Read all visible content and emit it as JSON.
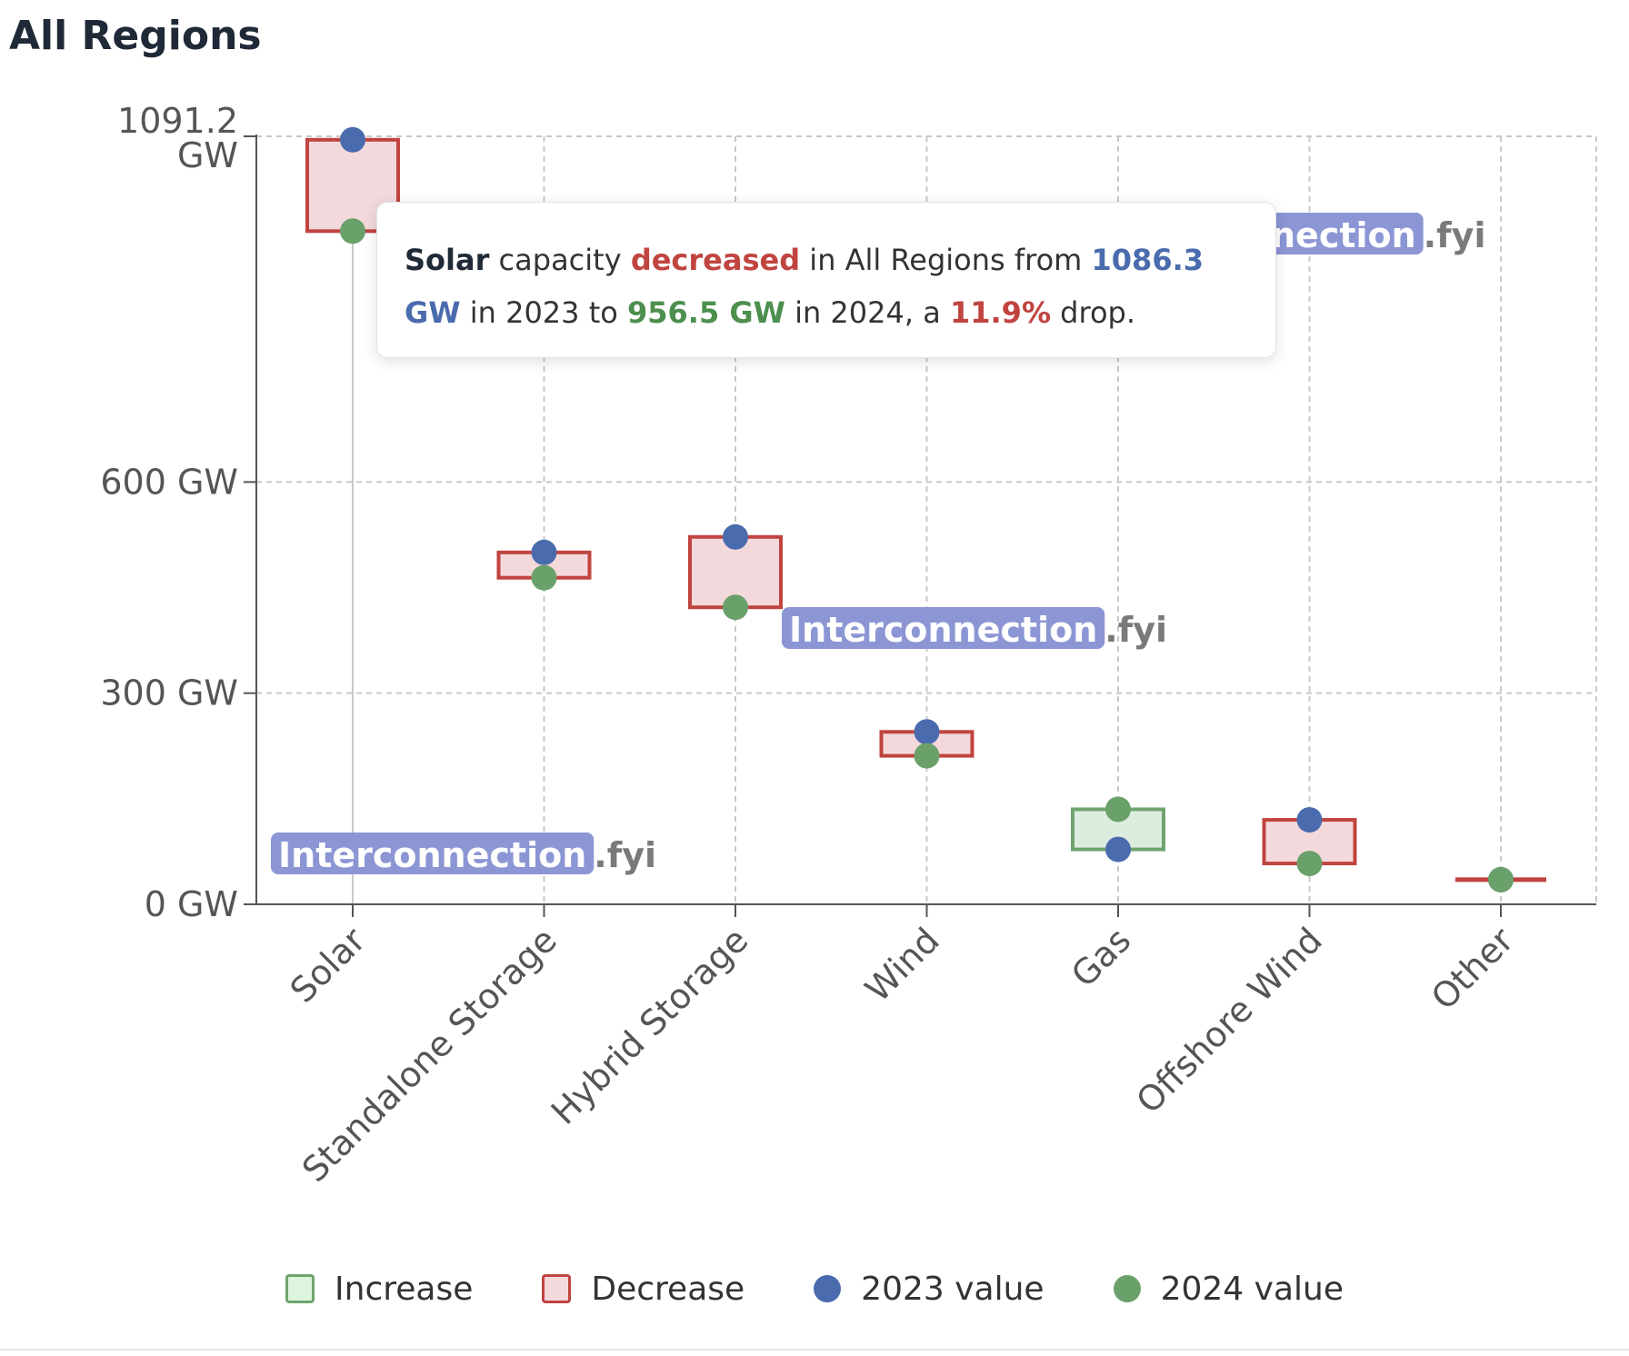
{
  "page": {
    "title": "All Regions"
  },
  "colors": {
    "increase_fill": "#dcecdf",
    "increase_stroke": "#6fa36f",
    "decrease_fill": "#f3d9db",
    "decrease_stroke": "#c0443f",
    "value_2023": "#4a6bad",
    "value_2024": "#6aa06a",
    "watermark_bg": "#8c96d4"
  },
  "chart_data": {
    "type": "bar",
    "categories": [
      "Solar",
      "Standalone Storage",
      "Hybrid Storage",
      "Wind",
      "Gas",
      "Offshore Wind",
      "Other"
    ],
    "series": [
      {
        "name": "2023 value",
        "values": [
          1086.3,
          500,
          522,
          245,
          78,
          120,
          35
        ]
      },
      {
        "name": "2024 value",
        "values": [
          956.5,
          464,
          422,
          211,
          135,
          58,
          35
        ]
      }
    ],
    "y_ticks": [
      {
        "value": 0,
        "label": "0 GW"
      },
      {
        "value": 300,
        "label": "300 GW"
      },
      {
        "value": 600,
        "label": "600 GW"
      },
      {
        "value": 1091.2,
        "label": "1091.2 GW"
      }
    ],
    "ylim": [
      0,
      1091.2
    ],
    "grid": true,
    "legend_position": "bottom"
  },
  "legend": {
    "items": [
      {
        "label": "Increase",
        "kind": "increase"
      },
      {
        "label": "Decrease",
        "kind": "decrease"
      },
      {
        "label": "2023 value",
        "kind": "dot-2023"
      },
      {
        "label": "2024 value",
        "kind": "dot-2024"
      }
    ]
  },
  "tooltip": {
    "category": "Solar",
    "t1": "capacity",
    "direction": "decreased",
    "t2": "in All Regions from",
    "value_2023": "1086.3 GW",
    "t3": "in 2023 to",
    "value_2024": "956.5 GW",
    "t4": "in 2024, a",
    "percent": "11.9%",
    "t5": "drop."
  },
  "watermark": {
    "name": "Interconnection",
    "suffix": ".fyi",
    "partial_name": "nection"
  }
}
